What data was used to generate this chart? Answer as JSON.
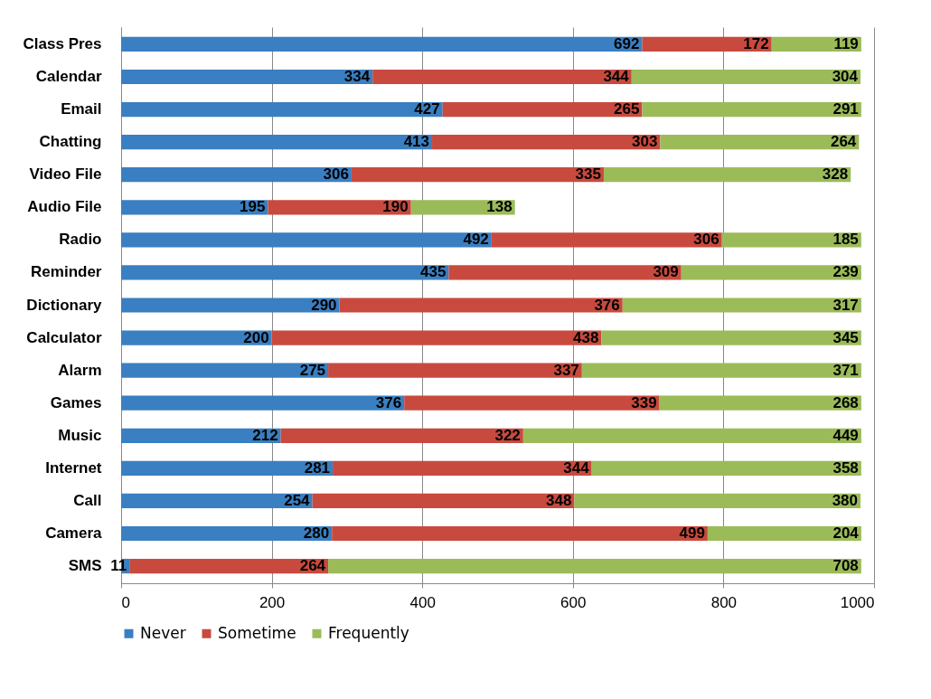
{
  "chart_data": {
    "type": "bar",
    "orientation": "horizontal",
    "stacked": true,
    "data_labels": true,
    "grid": "x",
    "legend": "bottom",
    "categories": [
      "Class Pres",
      "Calendar",
      "Email",
      "Chatting",
      "Video File",
      "Audio File",
      "Radio",
      "Reminder",
      "Dictionary",
      "Calculator",
      "Alarm",
      "Games",
      "Music",
      "Internet",
      "Call",
      "Camera",
      "SMS"
    ],
    "xlim": [
      0,
      1000
    ],
    "xticks": [
      0,
      200,
      400,
      600,
      800,
      1000
    ],
    "series": [
      {
        "name": "Never",
        "color": "#3a7fc1",
        "values": [
          692,
          334,
          427,
          413,
          306,
          195,
          492,
          435,
          290,
          200,
          275,
          376,
          212,
          281,
          254,
          280,
          11
        ]
      },
      {
        "name": "Sometime",
        "color": "#c84a3e",
        "values": [
          172,
          344,
          265,
          303,
          335,
          190,
          306,
          309,
          376,
          438,
          337,
          339,
          322,
          344,
          348,
          499,
          264
        ]
      },
      {
        "name": "Frequently",
        "color": "#9bbb59",
        "values": [
          119,
          304,
          291,
          264,
          328,
          138,
          185,
          239,
          317,
          345,
          371,
          268,
          449,
          358,
          380,
          204,
          708
        ]
      }
    ]
  }
}
